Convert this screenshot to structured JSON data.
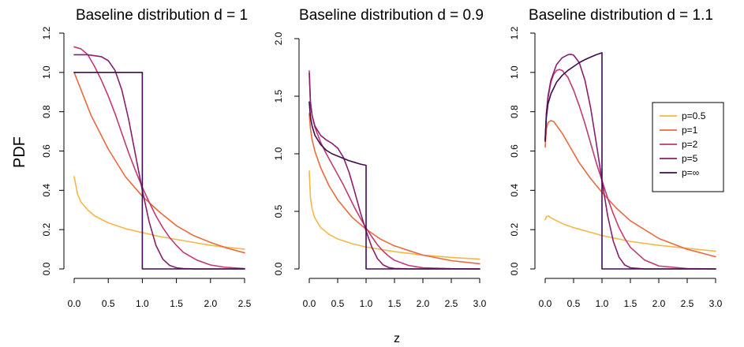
{
  "figure": {
    "ylabel": "PDF",
    "xlabel": "z"
  },
  "legend": {
    "entries": [
      {
        "label": "p=0.5",
        "color": "#f5b748"
      },
      {
        "label": "p=1",
        "color": "#ea6a3f"
      },
      {
        "label": "p=2",
        "color": "#c23a6f"
      },
      {
        "label": "p=5",
        "color": "#8a1e6e"
      },
      {
        "label": "p=∞",
        "color": "#3f0d4f"
      }
    ]
  },
  "chart_data": [
    {
      "type": "line",
      "title": "Baseline distribution  d = 1",
      "xlim": [
        0,
        2.5
      ],
      "ylim": [
        0,
        1.2
      ],
      "xticks": [
        0.0,
        0.5,
        1.0,
        1.5,
        2.0,
        2.5
      ],
      "xtick_labels": [
        "0.0",
        "0.5",
        "1.0",
        "1.5",
        "2.0",
        "2.5"
      ],
      "yticks": [
        0.0,
        0.2,
        0.4,
        0.6,
        0.8,
        1.0,
        1.2
      ],
      "ytick_labels": [
        "0.0",
        "0.2",
        "0.4",
        "0.6",
        "0.8",
        "1.0",
        "1.2"
      ],
      "series": [
        {
          "name": "p=0.5",
          "color": "#f5b748",
          "x": [
            0.0,
            0.05,
            0.1,
            0.2,
            0.3,
            0.5,
            0.75,
            1.0,
            1.25,
            1.5,
            1.75,
            2.0,
            2.25,
            2.5
          ],
          "y": [
            0.47,
            0.38,
            0.34,
            0.3,
            0.27,
            0.235,
            0.205,
            0.185,
            0.165,
            0.15,
            0.135,
            0.12,
            0.11,
            0.1
          ]
        },
        {
          "name": "p=1",
          "color": "#ea6a3f",
          "x": [
            0.0,
            0.25,
            0.5,
            0.75,
            1.0,
            1.25,
            1.5,
            1.75,
            2.0,
            2.25,
            2.5
          ],
          "y": [
            1.0,
            0.78,
            0.61,
            0.47,
            0.37,
            0.29,
            0.22,
            0.17,
            0.135,
            0.105,
            0.082
          ]
        },
        {
          "name": "p=2",
          "color": "#c23a6f",
          "x": [
            0.0,
            0.1,
            0.2,
            0.3,
            0.4,
            0.5,
            0.6,
            0.7,
            0.8,
            0.9,
            1.0,
            1.1,
            1.2,
            1.3,
            1.4,
            1.5,
            1.6,
            1.8,
            2.0,
            2.2,
            2.5
          ],
          "y": [
            1.13,
            1.12,
            1.09,
            1.03,
            0.96,
            0.88,
            0.79,
            0.69,
            0.59,
            0.5,
            0.415,
            0.34,
            0.27,
            0.21,
            0.16,
            0.12,
            0.085,
            0.045,
            0.02,
            0.009,
            0.002
          ]
        },
        {
          "name": "p=5",
          "color": "#8a1e6e",
          "x": [
            0.0,
            0.2,
            0.4,
            0.5,
            0.6,
            0.7,
            0.8,
            0.9,
            1.0,
            1.1,
            1.2,
            1.3,
            1.4,
            1.5,
            1.6,
            1.8,
            2.0,
            2.5
          ],
          "y": [
            1.09,
            1.09,
            1.08,
            1.06,
            1.01,
            0.91,
            0.76,
            0.58,
            0.4,
            0.24,
            0.12,
            0.05,
            0.018,
            0.006,
            0.002,
            0.0,
            0.0,
            0.0
          ]
        },
        {
          "name": "p=∞",
          "color": "#3f0d4f",
          "x": [
            0.0,
            1.0,
            1.0,
            2.5
          ],
          "y": [
            1.0,
            1.0,
            0.0,
            0.0
          ]
        }
      ]
    },
    {
      "type": "line",
      "title": "Baseline distribution  d = 0.9",
      "xlim": [
        0,
        3
      ],
      "ylim": [
        0,
        2.0
      ],
      "xticks": [
        0.0,
        0.5,
        1.0,
        1.5,
        2.0,
        2.5,
        3.0
      ],
      "xtick_labels": [
        "0.0",
        "0.5",
        "1.0",
        "1.5",
        "2.0",
        "2.5",
        "3.0"
      ],
      "yticks": [
        0.0,
        0.5,
        1.0,
        1.5,
        2.0
      ],
      "ytick_labels": [
        "0.0",
        "0.5",
        "1.0",
        "1.5",
        "2.0"
      ],
      "series": [
        {
          "name": "p=0.5",
          "color": "#f5b748",
          "x": [
            0.0,
            0.02,
            0.05,
            0.1,
            0.2,
            0.35,
            0.5,
            0.75,
            1.0,
            1.5,
            2.0,
            2.5,
            3.0
          ],
          "y": [
            0.85,
            0.62,
            0.52,
            0.44,
            0.36,
            0.3,
            0.26,
            0.22,
            0.19,
            0.15,
            0.12,
            0.1,
            0.085
          ]
        },
        {
          "name": "p=1",
          "color": "#ea6a3f",
          "x": [
            0.0,
            0.02,
            0.05,
            0.1,
            0.2,
            0.35,
            0.5,
            0.75,
            1.0,
            1.25,
            1.5,
            2.0,
            2.5,
            3.0
          ],
          "y": [
            1.35,
            1.22,
            1.12,
            1.02,
            0.88,
            0.72,
            0.6,
            0.45,
            0.345,
            0.26,
            0.2,
            0.12,
            0.072,
            0.045
          ]
        },
        {
          "name": "p=2",
          "color": "#c23a6f",
          "x": [
            0.0,
            0.02,
            0.05,
            0.1,
            0.2,
            0.3,
            0.4,
            0.5,
            0.6,
            0.7,
            0.8,
            0.9,
            1.0,
            1.1,
            1.2,
            1.3,
            1.4,
            1.5,
            1.75,
            2.0,
            2.5,
            3.0
          ],
          "y": [
            1.72,
            1.45,
            1.33,
            1.23,
            1.1,
            1.0,
            0.91,
            0.82,
            0.73,
            0.63,
            0.53,
            0.44,
            0.355,
            0.28,
            0.21,
            0.155,
            0.11,
            0.075,
            0.03,
            0.01,
            0.002,
            0.0
          ]
        },
        {
          "name": "p=5",
          "color": "#8a1e6e",
          "x": [
            0.0,
            0.02,
            0.05,
            0.1,
            0.2,
            0.3,
            0.4,
            0.5,
            0.6,
            0.7,
            0.8,
            0.9,
            1.0,
            1.1,
            1.2,
            1.3,
            1.4,
            1.5,
            1.75,
            2.0,
            3.0
          ],
          "y": [
            1.7,
            1.45,
            1.33,
            1.24,
            1.16,
            1.12,
            1.09,
            1.05,
            0.97,
            0.84,
            0.67,
            0.49,
            0.33,
            0.19,
            0.09,
            0.035,
            0.012,
            0.004,
            0.0,
            0.0,
            0.0
          ]
        },
        {
          "name": "p=∞",
          "color": "#3f0d4f",
          "x": [
            0.0,
            0.02,
            0.05,
            0.1,
            0.2,
            0.3,
            0.4,
            0.5,
            0.6,
            0.7,
            0.8,
            0.9,
            1.0,
            1.0,
            3.0
          ],
          "y": [
            1.45,
            1.32,
            1.24,
            1.16,
            1.08,
            1.03,
            1.0,
            0.98,
            0.96,
            0.94,
            0.925,
            0.91,
            0.9,
            0.0,
            0.0
          ]
        }
      ]
    },
    {
      "type": "line",
      "title": "Baseline distribution  d = 1.1",
      "xlim": [
        0,
        3
      ],
      "ylim": [
        0,
        1.2
      ],
      "xticks": [
        0.0,
        0.5,
        1.0,
        1.5,
        2.0,
        2.5,
        3.0
      ],
      "xtick_labels": [
        "0.0",
        "0.5",
        "1.0",
        "1.5",
        "2.0",
        "2.5",
        "3.0"
      ],
      "yticks": [
        0.0,
        0.2,
        0.4,
        0.6,
        0.8,
        1.0,
        1.2
      ],
      "ytick_labels": [
        "0.0",
        "0.2",
        "0.4",
        "0.6",
        "0.8",
        "1.0",
        "1.2"
      ],
      "series": [
        {
          "name": "p=0.5",
          "color": "#f5b748",
          "x": [
            0.0,
            0.02,
            0.06,
            0.1,
            0.2,
            0.35,
            0.5,
            0.75,
            1.0,
            1.5,
            2.0,
            2.5,
            3.0
          ],
          "y": [
            0.25,
            0.265,
            0.27,
            0.26,
            0.245,
            0.225,
            0.21,
            0.19,
            0.17,
            0.14,
            0.12,
            0.105,
            0.09
          ]
        },
        {
          "name": "p=1",
          "color": "#ea6a3f",
          "x": [
            0.0,
            0.02,
            0.05,
            0.1,
            0.15,
            0.2,
            0.3,
            0.4,
            0.5,
            0.6,
            0.8,
            1.0,
            1.25,
            1.5,
            2.0,
            2.5,
            3.0
          ],
          "y": [
            0.62,
            0.71,
            0.745,
            0.755,
            0.75,
            0.73,
            0.69,
            0.64,
            0.59,
            0.54,
            0.46,
            0.39,
            0.31,
            0.245,
            0.155,
            0.1,
            0.062
          ]
        },
        {
          "name": "p=2",
          "color": "#c23a6f",
          "x": [
            0.0,
            0.02,
            0.05,
            0.1,
            0.15,
            0.2,
            0.25,
            0.3,
            0.4,
            0.5,
            0.6,
            0.7,
            0.8,
            0.9,
            1.0,
            1.1,
            1.2,
            1.3,
            1.4,
            1.5,
            1.75,
            2.0,
            2.5,
            3.0
          ],
          "y": [
            0.65,
            0.78,
            0.87,
            0.95,
            0.99,
            1.01,
            1.015,
            1.01,
            0.975,
            0.91,
            0.83,
            0.74,
            0.64,
            0.54,
            0.45,
            0.36,
            0.28,
            0.21,
            0.155,
            0.11,
            0.045,
            0.015,
            0.002,
            0.0
          ]
        },
        {
          "name": "p=5",
          "color": "#8a1e6e",
          "x": [
            0.0,
            0.02,
            0.05,
            0.1,
            0.2,
            0.3,
            0.4,
            0.45,
            0.5,
            0.6,
            0.7,
            0.8,
            0.9,
            1.0,
            1.1,
            1.2,
            1.3,
            1.4,
            1.5,
            1.75,
            2.0,
            3.0
          ],
          "y": [
            0.66,
            0.79,
            0.88,
            0.96,
            1.04,
            1.075,
            1.09,
            1.092,
            1.088,
            1.05,
            0.96,
            0.82,
            0.64,
            0.45,
            0.27,
            0.14,
            0.06,
            0.02,
            0.006,
            0.0,
            0.0,
            0.0
          ]
        },
        {
          "name": "p=∞",
          "color": "#3f0d4f",
          "x": [
            0.0,
            0.02,
            0.05,
            0.1,
            0.2,
            0.3,
            0.4,
            0.5,
            0.6,
            0.7,
            0.8,
            0.9,
            1.0,
            1.0,
            3.0
          ],
          "y": [
            0.65,
            0.77,
            0.84,
            0.89,
            0.95,
            0.985,
            1.01,
            1.03,
            1.05,
            1.065,
            1.078,
            1.09,
            1.1,
            0.0,
            0.0
          ]
        }
      ]
    }
  ]
}
